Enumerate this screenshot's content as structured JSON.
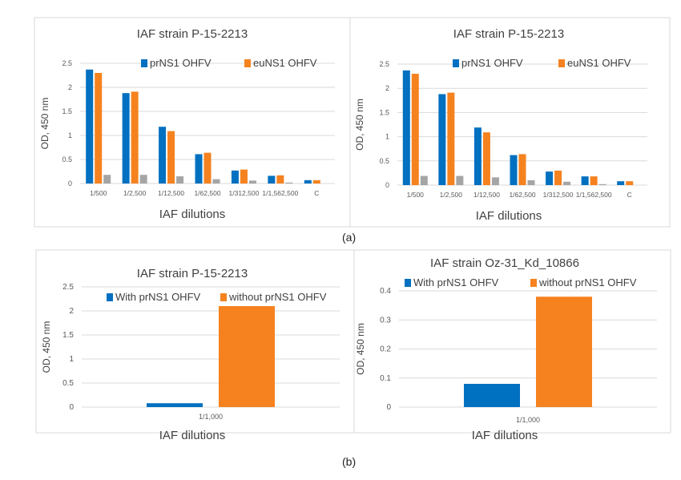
{
  "panels": {
    "a": "(a)",
    "b": "(b)"
  },
  "colors": {
    "series1": "#0070c0",
    "series2": "#f5821f",
    "series3": "#a5a5a5",
    "grid": "#d9d9d9",
    "axis_text": "#595959"
  },
  "chart_data": [
    {
      "type": "bar",
      "title": "IAF strain P-15-2213",
      "xlabel": "IAF dilutions",
      "ylabel": "OD, 450 nm",
      "ylim": [
        0,
        2.5
      ],
      "yticks": [
        "0",
        "0.5",
        "1",
        "1.5",
        "2",
        "2.5"
      ],
      "grid": true,
      "legend": "top-right",
      "categories": [
        "1/500",
        "1/2,500",
        "1/12,500",
        "1/62,500",
        "1/312,500",
        "1/1,562,500",
        "C"
      ],
      "series": [
        {
          "name": "prNS1 OHFV",
          "values": [
            2.37,
            1.88,
            1.18,
            0.61,
            0.27,
            0.16,
            0.07
          ]
        },
        {
          "name": "euNS1 OHFV",
          "values": [
            2.3,
            1.91,
            1.09,
            0.64,
            0.29,
            0.17,
            0.07
          ]
        },
        {
          "values": [
            0.18,
            0.18,
            0.15,
            0.09,
            0.06,
            0.02,
            null
          ]
        }
      ]
    },
    {
      "type": "bar",
      "title": "IAF strain P-15-2213",
      "xlabel": "IAF dilutions",
      "ylabel": "OD, 450 nm",
      "ylim": [
        0,
        2.5
      ],
      "yticks": [
        "0",
        "0.5",
        "1",
        "1.5",
        "2",
        "2.5"
      ],
      "grid": true,
      "legend": "top-right",
      "categories": [
        "1/500",
        "1/2,500",
        "1/12,500",
        "1/62,500",
        "1/312,500",
        "1/1,562,500",
        "C"
      ],
      "series": [
        {
          "name": "prNS1 OHFV",
          "values": [
            2.37,
            1.88,
            1.19,
            0.62,
            0.28,
            0.18,
            0.08
          ]
        },
        {
          "name": "euNS1 OHFV",
          "values": [
            2.3,
            1.91,
            1.09,
            0.64,
            0.3,
            0.18,
            0.08
          ]
        },
        {
          "values": [
            0.19,
            0.19,
            0.16,
            0.1,
            0.07,
            0.02,
            null
          ]
        }
      ]
    },
    {
      "type": "bar",
      "title": "IAF strain P-15-2213",
      "xlabel": "IAF dilutions",
      "ylabel": "OD, 450 nm",
      "ylim": [
        0,
        2.5
      ],
      "yticks": [
        "0",
        "0.5",
        "1",
        "1.5",
        "2",
        "2.5"
      ],
      "grid": true,
      "legend": "top-right",
      "categories": [
        "1/1,000"
      ],
      "series": [
        {
          "name": "With prNS1 OHFV",
          "values": [
            0.08
          ]
        },
        {
          "name": "without prNS1 OHFV",
          "values": [
            2.1
          ]
        }
      ]
    },
    {
      "type": "bar",
      "title": "IAF strain Oz-31_Kd_10866",
      "xlabel": "IAF dilutions",
      "ylabel": "OD, 450 nm",
      "ylim": [
        0,
        0.4
      ],
      "yticks": [
        "0",
        "0.1",
        "0.2",
        "0.3",
        "0.4"
      ],
      "grid": true,
      "legend": "top",
      "categories": [
        "1/1,000"
      ],
      "series": [
        {
          "name": "With prNS1 OHFV",
          "values": [
            0.08
          ]
        },
        {
          "name": "without prNS1 OHFV",
          "values": [
            0.38
          ]
        }
      ]
    }
  ]
}
